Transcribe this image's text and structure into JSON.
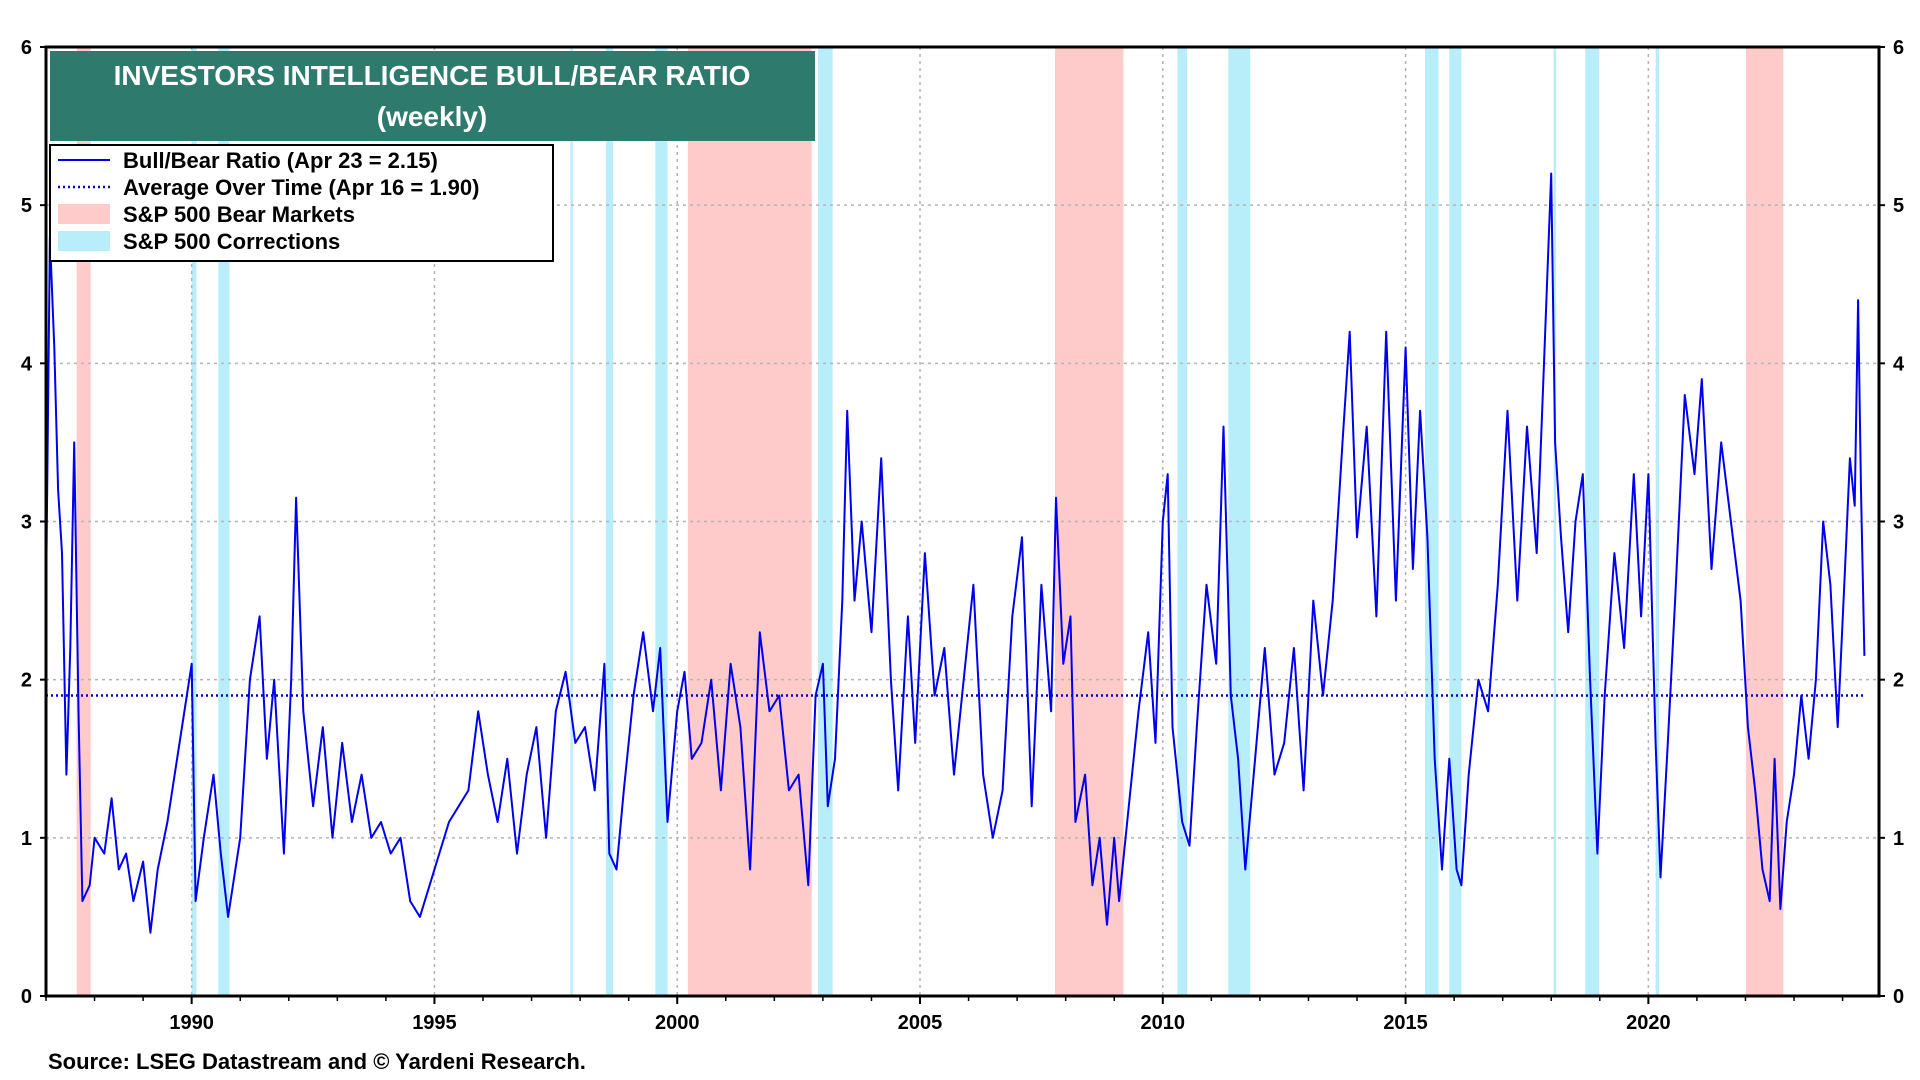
{
  "title_line1": "INVESTORS INTELLIGENCE BULL/BEAR RATIO",
  "title_line2": "(weekly)",
  "source": "Source: LSEG Datastream and © Yardeni Research.",
  "colors": {
    "line": "#0000ee",
    "average": "#0000cc",
    "bear": "#ffcaca",
    "correction": "#b8eefa",
    "title_box": "#2e7b6e",
    "grid": "#b4b4b4"
  },
  "chart_data": {
    "type": "line",
    "xlim": [
      1987.0,
      2024.75
    ],
    "ylim": [
      0,
      6
    ],
    "x_ticks": [
      1990,
      1995,
      2000,
      2005,
      2010,
      2015,
      2020
    ],
    "y_ticks": [
      0,
      1,
      2,
      3,
      4,
      5,
      6
    ],
    "grid": true,
    "legend_placement": "top-left",
    "legend": [
      {
        "label": "Bull/Bear Ratio (Apr 23 = 2.15)",
        "style": "solid-line"
      },
      {
        "label": "Average Over Time (Apr 16 = 1.90)",
        "style": "dotted-line"
      },
      {
        "label": "S&P 500 Bear Markets",
        "style": "pink-band"
      },
      {
        "label": "S&P 500 Corrections",
        "style": "cyan-band"
      }
    ],
    "average": 1.9,
    "bear_markets": [
      [
        1987.63,
        1987.92
      ],
      [
        2000.22,
        2002.77
      ],
      [
        2007.78,
        2009.19
      ],
      [
        2022.01,
        2022.78
      ]
    ],
    "corrections": [
      [
        1990.0,
        1990.1
      ],
      [
        1990.55,
        1990.78
      ],
      [
        1997.8,
        1997.85
      ],
      [
        1998.53,
        1998.68
      ],
      [
        1999.55,
        1999.8
      ],
      [
        2002.9,
        2003.2
      ],
      [
        2010.3,
        2010.5
      ],
      [
        2011.35,
        2011.8
      ],
      [
        2015.4,
        2015.68
      ],
      [
        2015.9,
        2016.15
      ],
      [
        2018.05,
        2018.1
      ],
      [
        2018.7,
        2018.99
      ],
      [
        2020.15,
        2020.22
      ]
    ],
    "series": [
      {
        "name": "Bull/Bear Ratio",
        "points": [
          [
            1987.0,
            2.5
          ],
          [
            1987.08,
            4.8
          ],
          [
            1987.17,
            4.1
          ],
          [
            1987.25,
            3.2
          ],
          [
            1987.33,
            2.8
          ],
          [
            1987.42,
            1.4
          ],
          [
            1987.5,
            2.2
          ],
          [
            1987.58,
            3.5
          ],
          [
            1987.67,
            1.8
          ],
          [
            1987.75,
            0.6
          ],
          [
            1987.9,
            0.7
          ],
          [
            1988.0,
            1.0
          ],
          [
            1988.2,
            0.9
          ],
          [
            1988.35,
            1.25
          ],
          [
            1988.5,
            0.8
          ],
          [
            1988.65,
            0.9
          ],
          [
            1988.8,
            0.6
          ],
          [
            1989.0,
            0.85
          ],
          [
            1989.15,
            0.4
          ],
          [
            1989.3,
            0.8
          ],
          [
            1989.5,
            1.1
          ],
          [
            1989.7,
            1.5
          ],
          [
            1989.85,
            1.8
          ],
          [
            1990.0,
            2.1
          ],
          [
            1990.08,
            0.6
          ],
          [
            1990.25,
            1.0
          ],
          [
            1990.45,
            1.4
          ],
          [
            1990.6,
            0.9
          ],
          [
            1990.75,
            0.5
          ],
          [
            1991.0,
            1.0
          ],
          [
            1991.2,
            2.0
          ],
          [
            1991.4,
            2.4
          ],
          [
            1991.55,
            1.5
          ],
          [
            1991.7,
            2.0
          ],
          [
            1991.9,
            0.9
          ],
          [
            1992.05,
            2.0
          ],
          [
            1992.15,
            3.15
          ],
          [
            1992.3,
            1.8
          ],
          [
            1992.5,
            1.2
          ],
          [
            1992.7,
            1.7
          ],
          [
            1992.9,
            1.0
          ],
          [
            1993.1,
            1.6
          ],
          [
            1993.3,
            1.1
          ],
          [
            1993.5,
            1.4
          ],
          [
            1993.7,
            1.0
          ],
          [
            1993.9,
            1.1
          ],
          [
            1994.1,
            0.9
          ],
          [
            1994.3,
            1.0
          ],
          [
            1994.5,
            0.6
          ],
          [
            1994.7,
            0.5
          ],
          [
            1994.9,
            0.7
          ],
          [
            1995.1,
            0.9
          ],
          [
            1995.3,
            1.1
          ],
          [
            1995.5,
            1.2
          ],
          [
            1995.7,
            1.3
          ],
          [
            1995.9,
            1.8
          ],
          [
            1996.1,
            1.4
          ],
          [
            1996.3,
            1.1
          ],
          [
            1996.5,
            1.5
          ],
          [
            1996.7,
            0.9
          ],
          [
            1996.9,
            1.4
          ],
          [
            1997.1,
            1.7
          ],
          [
            1997.3,
            1.0
          ],
          [
            1997.5,
            1.8
          ],
          [
            1997.7,
            2.05
          ],
          [
            1997.9,
            1.6
          ],
          [
            1998.1,
            1.7
          ],
          [
            1998.3,
            1.3
          ],
          [
            1998.5,
            2.1
          ],
          [
            1998.6,
            0.9
          ],
          [
            1998.75,
            0.8
          ],
          [
            1998.9,
            1.3
          ],
          [
            1999.1,
            1.9
          ],
          [
            1999.3,
            2.3
          ],
          [
            1999.5,
            1.8
          ],
          [
            1999.65,
            2.2
          ],
          [
            1999.8,
            1.1
          ],
          [
            2000.0,
            1.8
          ],
          [
            2000.15,
            2.05
          ],
          [
            2000.3,
            1.5
          ],
          [
            2000.5,
            1.6
          ],
          [
            2000.7,
            2.0
          ],
          [
            2000.9,
            1.3
          ],
          [
            2001.1,
            2.1
          ],
          [
            2001.3,
            1.7
          ],
          [
            2001.5,
            0.8
          ],
          [
            2001.7,
            2.3
          ],
          [
            2001.9,
            1.8
          ],
          [
            2002.1,
            1.9
          ],
          [
            2002.3,
            1.3
          ],
          [
            2002.5,
            1.4
          ],
          [
            2002.7,
            0.7
          ],
          [
            2002.85,
            1.9
          ],
          [
            2003.0,
            2.1
          ],
          [
            2003.1,
            1.2
          ],
          [
            2003.25,
            1.5
          ],
          [
            2003.4,
            2.5
          ],
          [
            2003.5,
            3.7
          ],
          [
            2003.65,
            2.5
          ],
          [
            2003.8,
            3.0
          ],
          [
            2004.0,
            2.3
          ],
          [
            2004.2,
            3.4
          ],
          [
            2004.4,
            2.0
          ],
          [
            2004.55,
            1.3
          ],
          [
            2004.75,
            2.4
          ],
          [
            2004.9,
            1.6
          ],
          [
            2005.1,
            2.8
          ],
          [
            2005.3,
            1.9
          ],
          [
            2005.5,
            2.2
          ],
          [
            2005.7,
            1.4
          ],
          [
            2005.9,
            2.0
          ],
          [
            2006.1,
            2.6
          ],
          [
            2006.3,
            1.4
          ],
          [
            2006.5,
            1.0
          ],
          [
            2006.7,
            1.3
          ],
          [
            2006.9,
            2.4
          ],
          [
            2007.1,
            2.9
          ],
          [
            2007.3,
            1.2
          ],
          [
            2007.5,
            2.6
          ],
          [
            2007.7,
            1.8
          ],
          [
            2007.8,
            3.15
          ],
          [
            2007.95,
            2.1
          ],
          [
            2008.1,
            2.4
          ],
          [
            2008.2,
            1.1
          ],
          [
            2008.4,
            1.4
          ],
          [
            2008.55,
            0.7
          ],
          [
            2008.7,
            1.0
          ],
          [
            2008.85,
            0.45
          ],
          [
            2009.0,
            1.0
          ],
          [
            2009.1,
            0.6
          ],
          [
            2009.3,
            1.2
          ],
          [
            2009.5,
            1.8
          ],
          [
            2009.7,
            2.3
          ],
          [
            2009.85,
            1.6
          ],
          [
            2010.0,
            3.0
          ],
          [
            2010.1,
            3.3
          ],
          [
            2010.2,
            1.7
          ],
          [
            2010.4,
            1.1
          ],
          [
            2010.55,
            0.95
          ],
          [
            2010.7,
            1.7
          ],
          [
            2010.9,
            2.6
          ],
          [
            2011.1,
            2.1
          ],
          [
            2011.25,
            3.6
          ],
          [
            2011.4,
            1.9
          ],
          [
            2011.55,
            1.5
          ],
          [
            2011.7,
            0.8
          ],
          [
            2011.9,
            1.5
          ],
          [
            2012.1,
            2.2
          ],
          [
            2012.3,
            1.4
          ],
          [
            2012.5,
            1.6
          ],
          [
            2012.7,
            2.2
          ],
          [
            2012.9,
            1.3
          ],
          [
            2013.1,
            2.5
          ],
          [
            2013.3,
            1.9
          ],
          [
            2013.5,
            2.5
          ],
          [
            2013.7,
            3.5
          ],
          [
            2013.85,
            4.2
          ],
          [
            2014.0,
            2.9
          ],
          [
            2014.2,
            3.6
          ],
          [
            2014.4,
            2.4
          ],
          [
            2014.6,
            4.2
          ],
          [
            2014.8,
            2.5
          ],
          [
            2015.0,
            4.1
          ],
          [
            2015.15,
            2.7
          ],
          [
            2015.3,
            3.7
          ],
          [
            2015.45,
            2.9
          ],
          [
            2015.6,
            1.5
          ],
          [
            2015.75,
            0.8
          ],
          [
            2015.9,
            1.5
          ],
          [
            2016.05,
            0.8
          ],
          [
            2016.15,
            0.7
          ],
          [
            2016.3,
            1.4
          ],
          [
            2016.5,
            2.0
          ],
          [
            2016.7,
            1.8
          ],
          [
            2016.9,
            2.6
          ],
          [
            2017.1,
            3.7
          ],
          [
            2017.3,
            2.5
          ],
          [
            2017.5,
            3.6
          ],
          [
            2017.7,
            2.8
          ],
          [
            2017.85,
            4.0
          ],
          [
            2018.0,
            5.2
          ],
          [
            2018.08,
            3.5
          ],
          [
            2018.2,
            2.9
          ],
          [
            2018.35,
            2.3
          ],
          [
            2018.5,
            3.0
          ],
          [
            2018.65,
            3.3
          ],
          [
            2018.8,
            2.0
          ],
          [
            2018.95,
            0.9
          ],
          [
            2019.1,
            1.9
          ],
          [
            2019.3,
            2.8
          ],
          [
            2019.5,
            2.2
          ],
          [
            2019.7,
            3.3
          ],
          [
            2019.85,
            2.4
          ],
          [
            2020.0,
            3.3
          ],
          [
            2020.15,
            1.6
          ],
          [
            2020.25,
            0.75
          ],
          [
            2020.4,
            1.6
          ],
          [
            2020.55,
            2.5
          ],
          [
            2020.75,
            3.8
          ],
          [
            2020.95,
            3.3
          ],
          [
            2021.1,
            3.9
          ],
          [
            2021.3,
            2.7
          ],
          [
            2021.5,
            3.5
          ],
          [
            2021.7,
            3.0
          ],
          [
            2021.9,
            2.5
          ],
          [
            2022.05,
            1.7
          ],
          [
            2022.2,
            1.3
          ],
          [
            2022.35,
            0.8
          ],
          [
            2022.5,
            0.6
          ],
          [
            2022.6,
            1.5
          ],
          [
            2022.72,
            0.55
          ],
          [
            2022.85,
            1.1
          ],
          [
            2023.0,
            1.4
          ],
          [
            2023.15,
            1.9
          ],
          [
            2023.3,
            1.5
          ],
          [
            2023.45,
            2.0
          ],
          [
            2023.6,
            3.0
          ],
          [
            2023.75,
            2.6
          ],
          [
            2023.9,
            1.7
          ],
          [
            2024.05,
            2.7
          ],
          [
            2024.15,
            3.4
          ],
          [
            2024.25,
            3.1
          ],
          [
            2024.32,
            4.4
          ],
          [
            2024.38,
            3.2
          ],
          [
            2024.45,
            2.15
          ]
        ]
      },
      {
        "name": "Average Over Time",
        "points": [
          [
            1987.0,
            1.9
          ],
          [
            2024.45,
            1.9
          ]
        ]
      }
    ]
  }
}
